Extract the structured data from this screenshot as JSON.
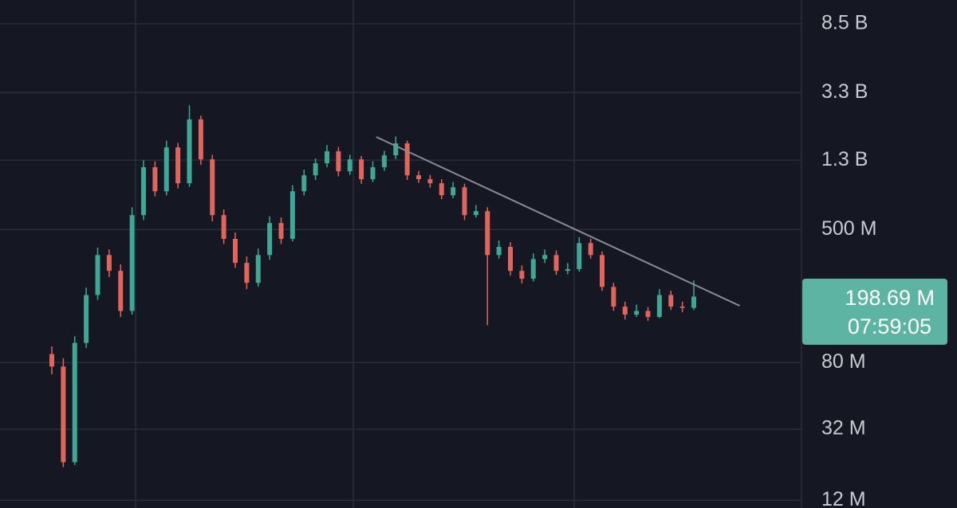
{
  "chart_data": {
    "type": "candlestick",
    "log_scale": true,
    "grid": true,
    "up_color": "#3fa796",
    "down_color": "#e0665c",
    "ylim": [
      10.8,
      11800
    ],
    "yticks": [
      {
        "value": 8500,
        "label": "8.5 B"
      },
      {
        "value": 3300,
        "label": "3.3 B"
      },
      {
        "value": 1300,
        "label": "1.3 B"
      },
      {
        "value": 500,
        "label": "500 M"
      },
      {
        "value": 80,
        "label": "80 M"
      },
      {
        "value": 32,
        "label": "32 M"
      },
      {
        "value": 12,
        "label": "12 M"
      }
    ],
    "open": [
      90,
      75.8,
      20.3,
      105,
      203,
      352,
      283,
      163,
      610,
      1180,
      847,
      1550,
      946,
      2280,
      1315,
      610,
      440,
      316,
      240,
      352,
      547,
      440,
      847,
      1055,
      1245,
      1470,
      1115,
      1315,
      1000,
      1180,
      1390,
      1640,
      1055,
      1000,
      946,
      802,
      895,
      610,
      644,
      352,
      394,
      283,
      254,
      333,
      352,
      283,
      290,
      415,
      352,
      227,
      173,
      155,
      163,
      150,
      203,
      173,
      170
    ],
    "high": [
      100,
      85,
      115,
      225,
      390,
      380,
      310,
      680,
      1300,
      1280,
      1700,
      1650,
      2770,
      2400,
      1400,
      660,
      480,
      345,
      385,
      600,
      590,
      920,
      1140,
      1330,
      1600,
      1560,
      1400,
      1380,
      1280,
      1480,
      1800,
      1700,
      1120,
      1060,
      1000,
      960,
      940,
      700,
      680,
      430,
      420,
      305,
      360,
      380,
      375,
      315,
      450,
      440,
      370,
      240,
      185,
      178,
      172,
      220,
      215,
      185,
      248
    ],
    "low": [
      68,
      19,
      19.5,
      98,
      190,
      260,
      150,
      155,
      570,
      790,
      800,
      880,
      900,
      1220,
      560,
      410,
      295,
      220,
      228,
      330,
      410,
      425,
      800,
      990,
      1180,
      1040,
      1060,
      940,
      960,
      1120,
      1320,
      990,
      950,
      890,
      760,
      770,
      570,
      590,
      134,
      335,
      265,
      238,
      245,
      315,
      268,
      270,
      280,
      335,
      215,
      163,
      145,
      150,
      142,
      148,
      165,
      160,
      165
    ],
    "close": [
      75.8,
      20.3,
      105,
      203,
      352,
      283,
      163,
      610,
      1180,
      847,
      1550,
      946,
      2280,
      1315,
      610,
      440,
      316,
      240,
      352,
      547,
      440,
      847,
      1055,
      1245,
      1470,
      1115,
      1315,
      1000,
      1180,
      1390,
      1640,
      1055,
      1000,
      946,
      802,
      895,
      610,
      644,
      352,
      394,
      283,
      254,
      333,
      352,
      283,
      290,
      415,
      352,
      227,
      173,
      155,
      163,
      150,
      203,
      173,
      170,
      198.69
    ],
    "trendline": {
      "x": [
        28.3,
        60
      ],
      "values": [
        1790,
        175
      ]
    },
    "price_label": {
      "value": 198.69,
      "label": "198.69 M"
    },
    "countdown": "07:59:05"
  }
}
